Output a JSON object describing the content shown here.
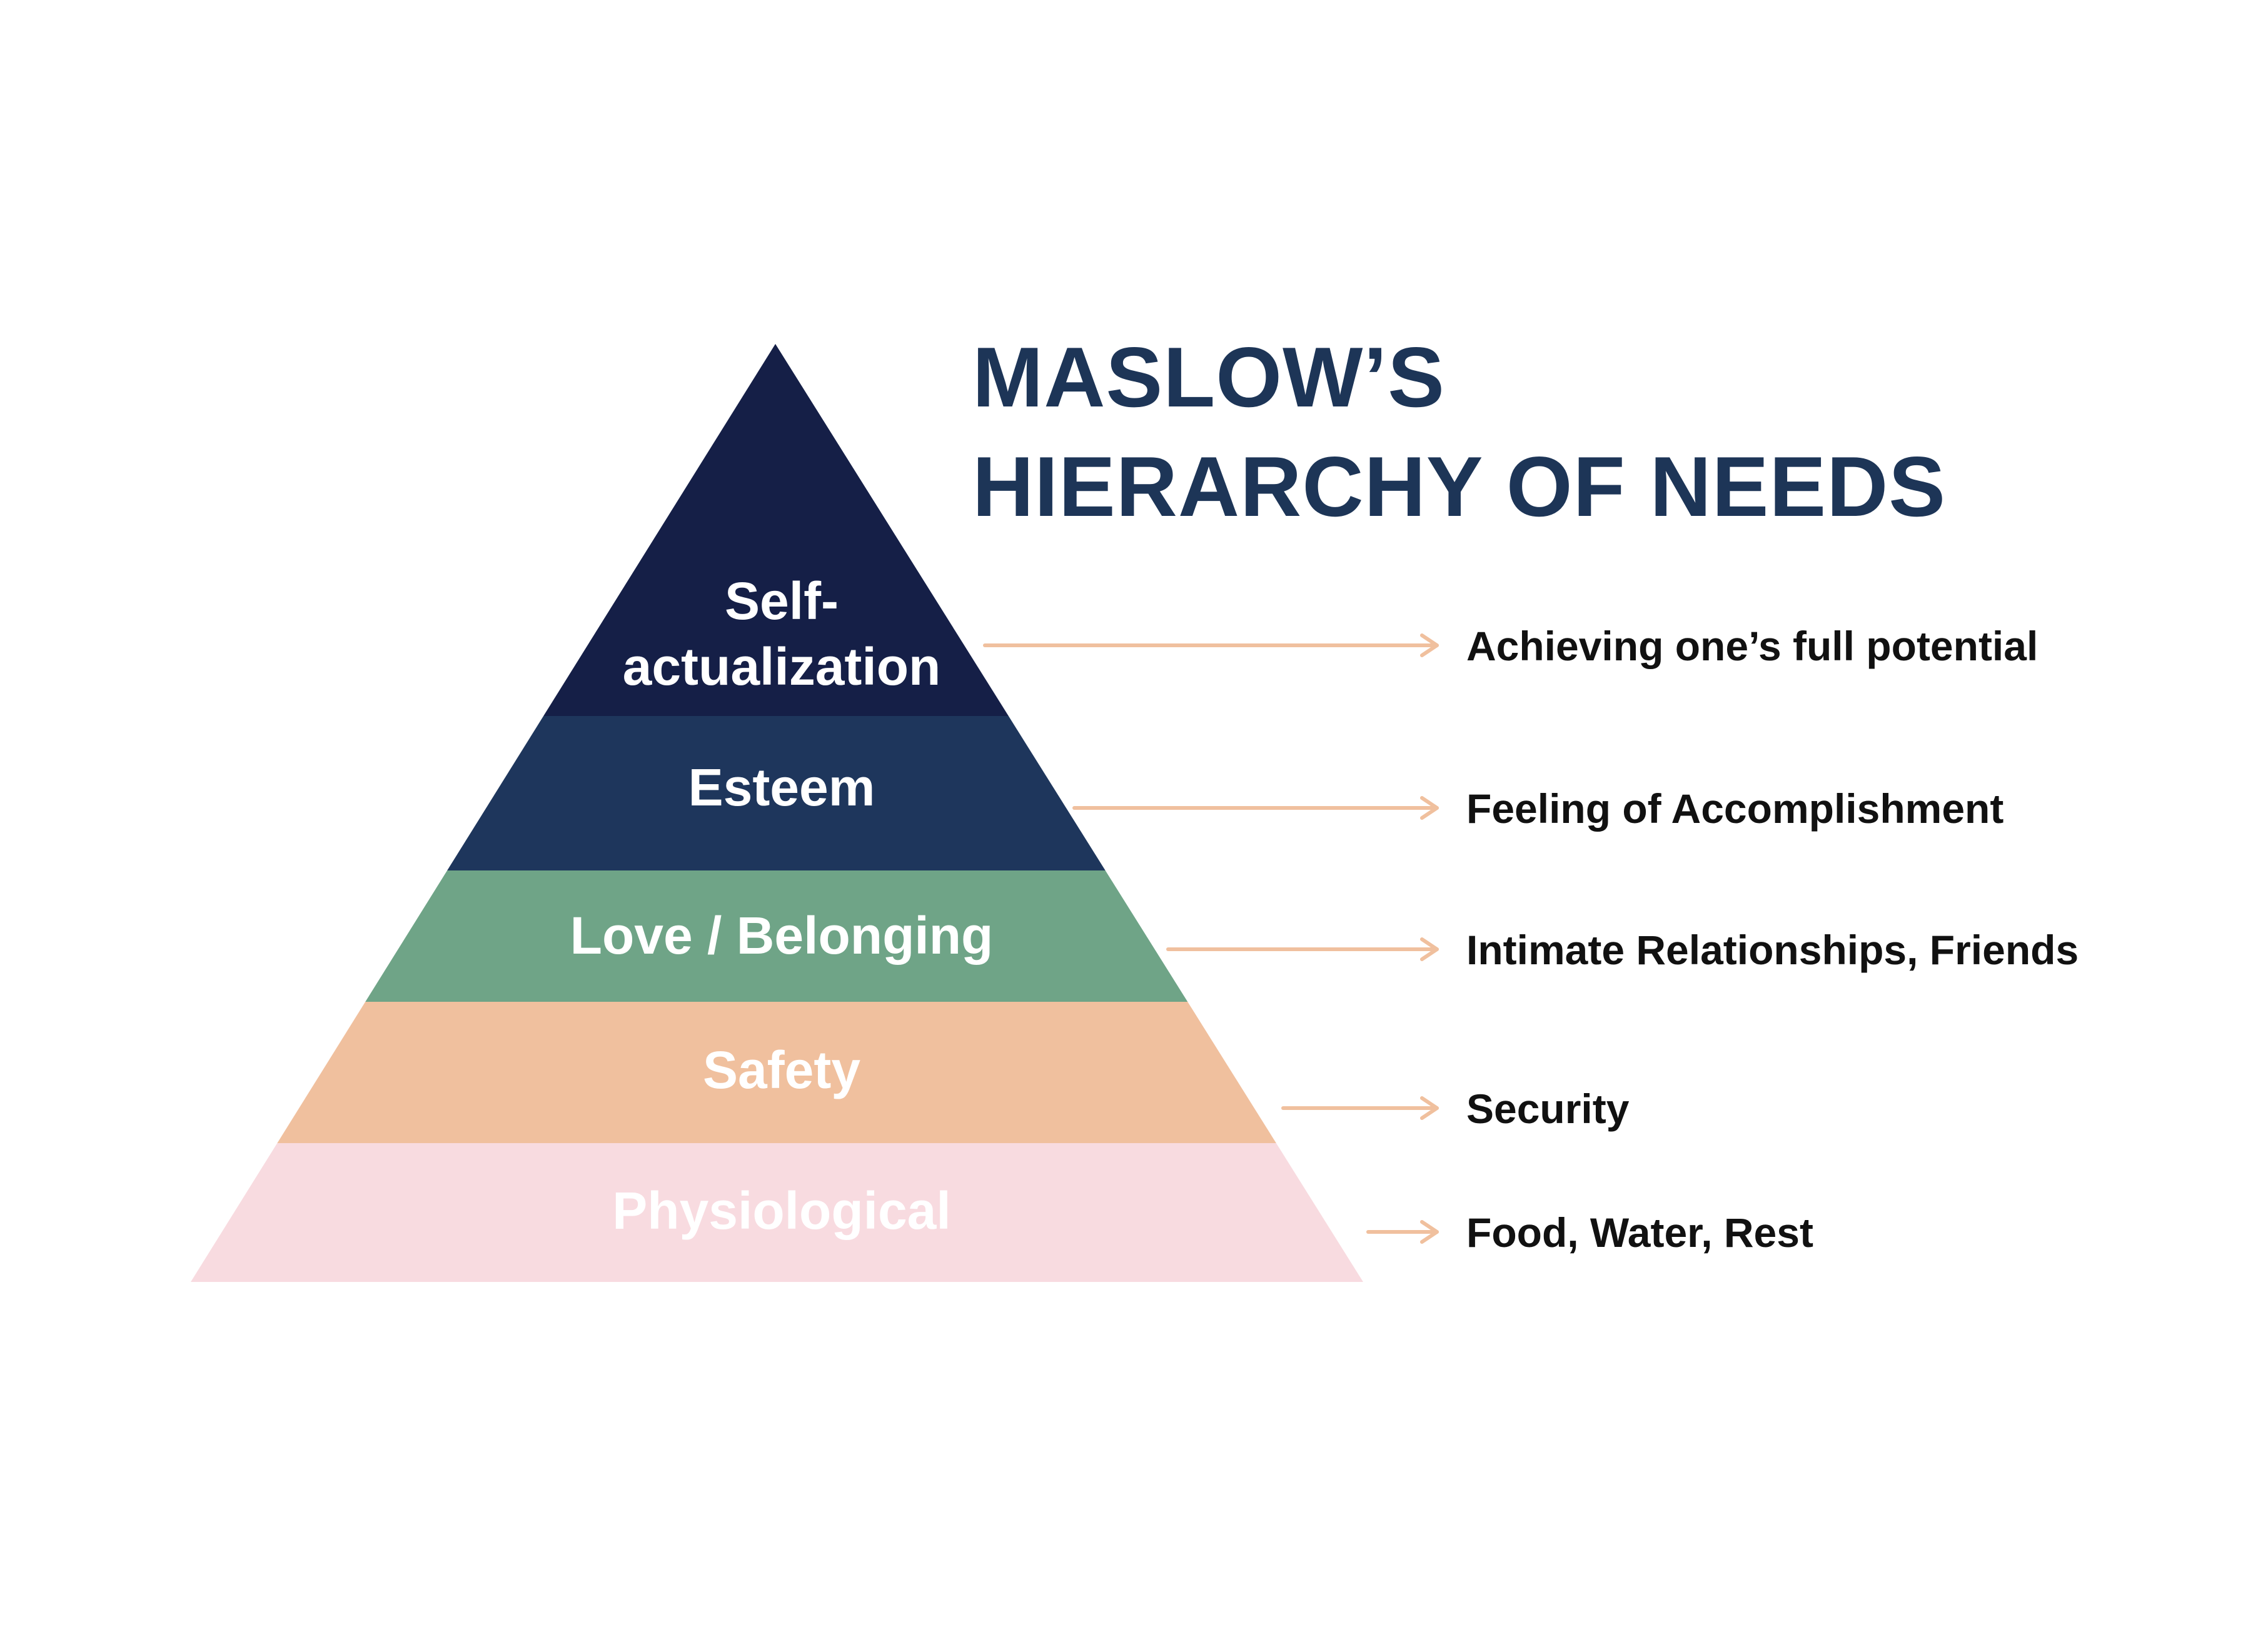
{
  "title": {
    "line1": "MASLOW’S",
    "line2": "HIERARCHY OF NEEDS"
  },
  "colors": {
    "title": "#1d3557",
    "arrow": "#f0c09e",
    "description_text": "#111111",
    "background": "#ffffff"
  },
  "levels": [
    {
      "name_lines": [
        "Self-",
        "actualization"
      ],
      "description": "Achieving one’s full potential",
      "fill": "#151f47",
      "label_color": "#ffffff"
    },
    {
      "name_lines": [
        "Esteem"
      ],
      "description": "Feeling of Accomplishment",
      "fill": "#1e365c",
      "label_color": "#ffffff"
    },
    {
      "name_lines": [
        "Love / Belonging"
      ],
      "description": "Intimate Relationships, Friends",
      "fill": "#6fa487",
      "label_color": "#ffffff"
    },
    {
      "name_lines": [
        "Safety"
      ],
      "description": "Security",
      "fill": "#f0c09e",
      "label_color": "#ffffff"
    },
    {
      "name_lines": [
        "Physiological"
      ],
      "description": "Food, Water, Rest",
      "fill": "#f8dbe0",
      "label_color": "#ffffff"
    }
  ]
}
